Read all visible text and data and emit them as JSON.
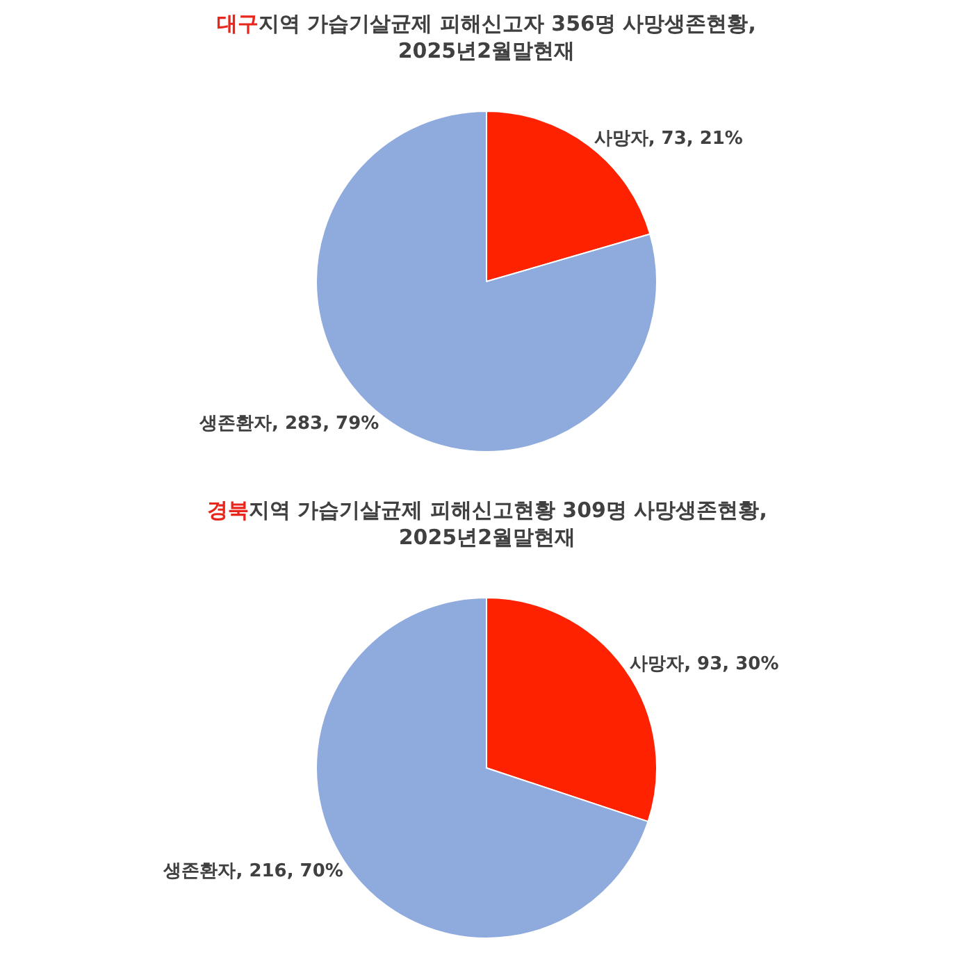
{
  "chart_data": [
    {
      "type": "pie",
      "title": "대구지역 가습기살균제 피해신고자 356명 사망생존현황,\n2025년2월말현재",
      "categories": [
        "사망자",
        "생존환자"
      ],
      "values": [
        73,
        283
      ],
      "value_labels": [
        "73, 21%",
        "283, 79%"
      ],
      "colors": [
        "#ff2200",
        "#8faadc"
      ],
      "legend": false
    },
    {
      "type": "pie",
      "title": "경북지역 가습기살균제 피해신고현황 309명 사망생존현황,\n2025년2월말현재",
      "categories": [
        "사망자",
        "생존환자"
      ],
      "values": [
        93,
        216
      ],
      "value_labels": [
        "93, 30%",
        "216, 70%"
      ],
      "colors": [
        "#ff2200",
        "#8faadc"
      ],
      "legend": false
    }
  ]
}
